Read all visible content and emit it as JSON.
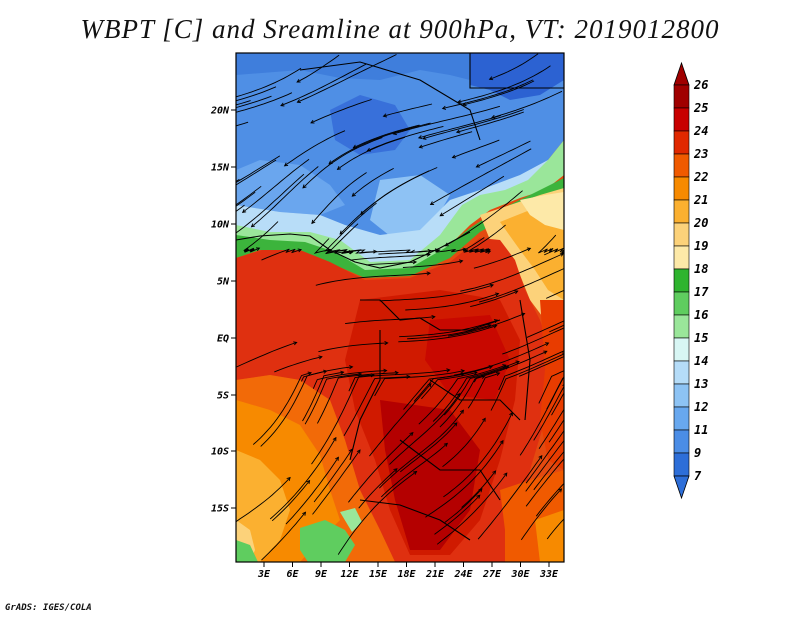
{
  "title": "WBPT [C] and Sreamline at 900hPa, VT: 2019012800",
  "credit": "GrADS: IGES/COLA",
  "map": {
    "lat_labels": [
      "20N",
      "15N",
      "10N",
      "5N",
      "EQ",
      "5S",
      "10S",
      "15S"
    ],
    "lon_labels": [
      "3E",
      "6E",
      "9E",
      "12E",
      "15E",
      "18E",
      "21E",
      "24E",
      "27E",
      "30E",
      "33E"
    ]
  },
  "colorbar": {
    "labels": [
      "26",
      "25",
      "24",
      "23",
      "22",
      "21",
      "20",
      "19",
      "18",
      "17",
      "16",
      "15",
      "14",
      "13",
      "12",
      "11",
      "9",
      "7"
    ],
    "colors": [
      "#a00000",
      "#c80000",
      "#e02800",
      "#f05a00",
      "#f78a00",
      "#fbb030",
      "#fcd27a",
      "#fde9a8",
      "#2fb42f",
      "#5fcd5f",
      "#9ae69a",
      "#d8f6f4",
      "#b5dcf8",
      "#8dc3f4",
      "#68a8ef",
      "#4b8de6",
      "#2d6ed8"
    ],
    "arrow_top_color": "#a00000",
    "arrow_bottom_color": "#2d6ed8"
  }
}
